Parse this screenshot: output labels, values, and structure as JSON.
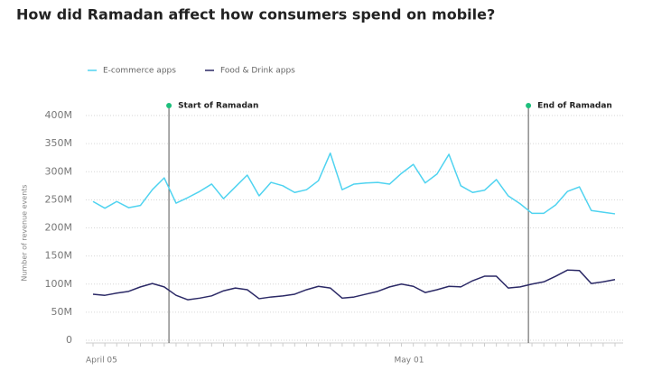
{
  "chart_data": {
    "type": "line",
    "title": "How did Ramadan affect how consumers spend on mobile?",
    "ylabel": "Number of revenue events",
    "categories": [
      "April 05",
      null,
      null,
      null,
      null,
      null,
      null,
      null,
      null,
      null,
      null,
      null,
      null,
      null,
      null,
      null,
      null,
      null,
      null,
      null,
      null,
      null,
      null,
      null,
      null,
      null,
      "May 01",
      null,
      null,
      null,
      null,
      null,
      null,
      null,
      null,
      null,
      null,
      null,
      null,
      null,
      null,
      null,
      null,
      null,
      null
    ],
    "series": [
      {
        "name": "E-commerce apps",
        "color": "#4fd3f0",
        "values": [
          247000000,
          235000000,
          247000000,
          236000000,
          240000000,
          268000000,
          289000000,
          244000000,
          254000000,
          265000000,
          278000000,
          252000000,
          273000000,
          294000000,
          257000000,
          281000000,
          275000000,
          263000000,
          268000000,
          284000000,
          333000000,
          268000000,
          278000000,
          280000000,
          281000000,
          278000000,
          297000000,
          313000000,
          280000000,
          296000000,
          331000000,
          275000000,
          263000000,
          267000000,
          286000000,
          257000000,
          243000000,
          226000000,
          226000000,
          241000000,
          265000000,
          273000000,
          231000000,
          228000000,
          225000000
        ]
      },
      {
        "name": "Food & Drink apps",
        "color": "#2b2966",
        "values": [
          82000000,
          80000000,
          84000000,
          87000000,
          95000000,
          101000000,
          95000000,
          80000000,
          72000000,
          75000000,
          79000000,
          88000000,
          93000000,
          90000000,
          74000000,
          77000000,
          79000000,
          82000000,
          90000000,
          96000000,
          93000000,
          75000000,
          77000000,
          82000000,
          87000000,
          95000000,
          100000000,
          96000000,
          85000000,
          90000000,
          96000000,
          95000000,
          106000000,
          114000000,
          114000000,
          93000000,
          95000000,
          100000000,
          104000000,
          114000000,
          125000000,
          124000000,
          101000000,
          104000000,
          108000000
        ]
      }
    ],
    "annotations": [
      {
        "label": "Start of Ramadan",
        "x": 6.4
      },
      {
        "label": "End of Ramadan",
        "x": 36.7
      }
    ],
    "ylim": [
      0,
      400000000
    ],
    "yticks": [
      0,
      {
        "value": 50000000,
        "label": "50M"
      },
      {
        "value": 100000000,
        "label": "100M"
      },
      {
        "value": 150000000,
        "label": "150M"
      },
      {
        "value": 200000000,
        "label": "200M"
      },
      {
        "value": 250000000,
        "label": "250M"
      },
      {
        "value": 300000000,
        "label": "300M"
      },
      {
        "value": 350000000,
        "label": "350M"
      },
      {
        "value": 400000000,
        "label": "400M"
      }
    ],
    "grid": true
  }
}
